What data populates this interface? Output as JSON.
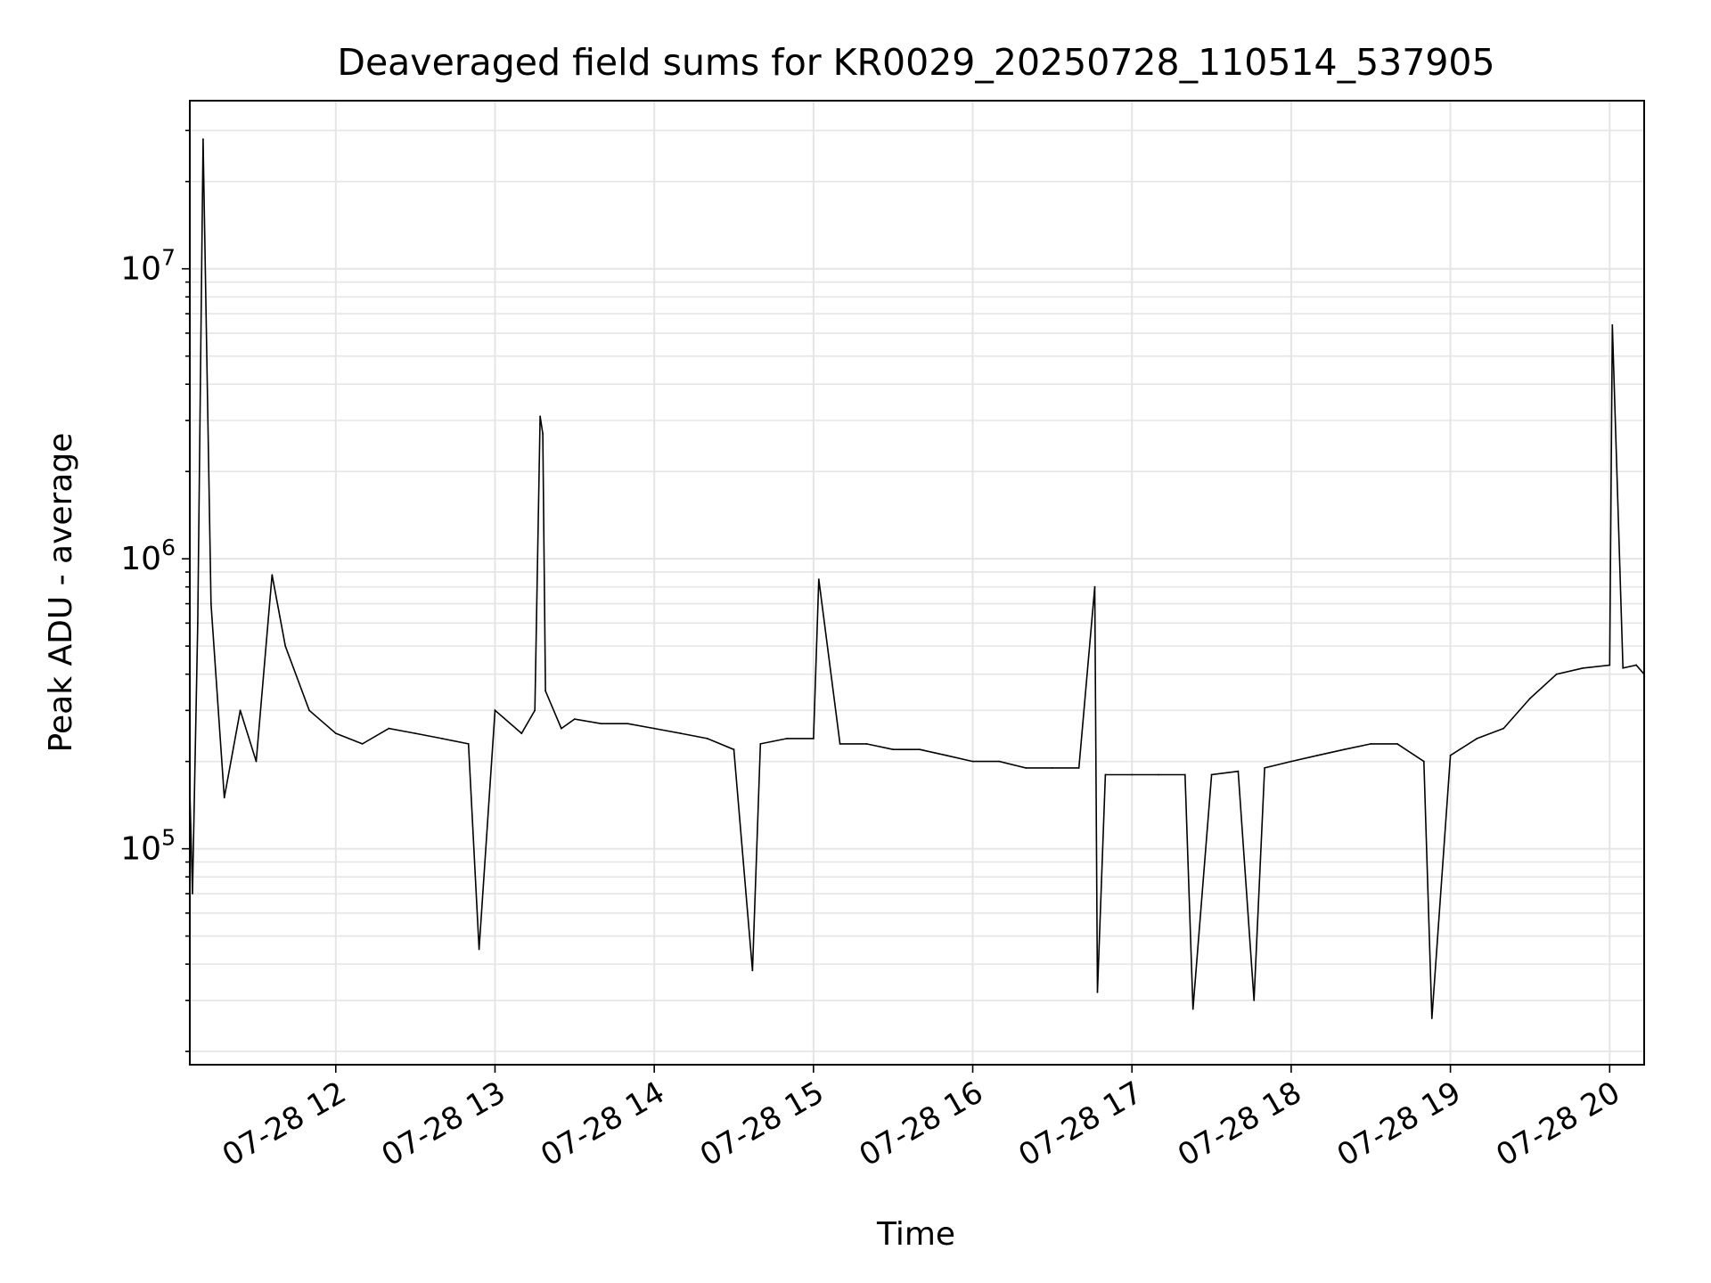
{
  "chart_data": {
    "type": "line",
    "title": "Deaveraged field sums for KR0029_20250728_110514_537905",
    "xlabel": "Time",
    "ylabel": "Peak ADU - average",
    "xlim": [
      "2025-07-28 11:05",
      "2025-07-28 20:13"
    ],
    "ylim": [
      18000,
      38000000
    ],
    "yscale": "log",
    "grid": true,
    "line_color": "#000000",
    "grid_color": "#e5e5e5",
    "x_ticks": [
      {
        "value": "2025-07-28 12:00",
        "label": "07-28 12"
      },
      {
        "value": "2025-07-28 13:00",
        "label": "07-28 13"
      },
      {
        "value": "2025-07-28 14:00",
        "label": "07-28 14"
      },
      {
        "value": "2025-07-28 15:00",
        "label": "07-28 15"
      },
      {
        "value": "2025-07-28 16:00",
        "label": "07-28 16"
      },
      {
        "value": "2025-07-28 17:00",
        "label": "07-28 17"
      },
      {
        "value": "2025-07-28 18:00",
        "label": "07-28 18"
      },
      {
        "value": "2025-07-28 19:00",
        "label": "07-28 19"
      },
      {
        "value": "2025-07-28 20:00",
        "label": "07-28 20"
      }
    ],
    "y_ticks": [
      {
        "value": 100000,
        "base": "10",
        "exp": "5"
      },
      {
        "value": 1000000,
        "base": "10",
        "exp": "6"
      },
      {
        "value": 10000000,
        "base": "10",
        "exp": "7"
      }
    ],
    "series": [
      {
        "x": [
          "2025-07-28 11:05",
          "2025-07-28 11:06",
          "2025-07-28 11:08",
          "2025-07-28 11:10",
          "2025-07-28 11:13",
          "2025-07-28 11:18",
          "2025-07-28 11:24",
          "2025-07-28 11:30",
          "2025-07-28 11:36",
          "2025-07-28 11:41",
          "2025-07-28 11:50",
          "2025-07-28 12:00",
          "2025-07-28 12:10",
          "2025-07-28 12:20",
          "2025-07-28 12:30",
          "2025-07-28 12:40",
          "2025-07-28 12:50",
          "2025-07-28 12:54",
          "2025-07-28 13:00",
          "2025-07-28 13:10",
          "2025-07-28 13:15",
          "2025-07-28 13:17",
          "2025-07-28 13:18",
          "2025-07-28 13:19",
          "2025-07-28 13:25",
          "2025-07-28 13:30",
          "2025-07-28 13:40",
          "2025-07-28 13:50",
          "2025-07-28 14:00",
          "2025-07-28 14:10",
          "2025-07-28 14:20",
          "2025-07-28 14:30",
          "2025-07-28 14:37",
          "2025-07-28 14:40",
          "2025-07-28 14:50",
          "2025-07-28 15:00",
          "2025-07-28 15:02",
          "2025-07-28 15:10",
          "2025-07-28 15:20",
          "2025-07-28 15:30",
          "2025-07-28 15:40",
          "2025-07-28 15:50",
          "2025-07-28 16:00",
          "2025-07-28 16:10",
          "2025-07-28 16:20",
          "2025-07-28 16:30",
          "2025-07-28 16:40",
          "2025-07-28 16:46",
          "2025-07-28 16:47",
          "2025-07-28 16:50",
          "2025-07-28 17:00",
          "2025-07-28 17:10",
          "2025-07-28 17:20",
          "2025-07-28 17:23",
          "2025-07-28 17:30",
          "2025-07-28 17:40",
          "2025-07-28 17:46",
          "2025-07-28 17:50",
          "2025-07-28 18:00",
          "2025-07-28 18:10",
          "2025-07-28 18:20",
          "2025-07-28 18:30",
          "2025-07-28 18:40",
          "2025-07-28 18:50",
          "2025-07-28 18:53",
          "2025-07-28 19:00",
          "2025-07-28 19:10",
          "2025-07-28 19:20",
          "2025-07-28 19:30",
          "2025-07-28 19:40",
          "2025-07-28 19:50",
          "2025-07-28 20:00",
          "2025-07-28 20:01",
          "2025-07-28 20:05",
          "2025-07-28 20:10",
          "2025-07-28 20:13"
        ],
        "y": [
          160000,
          70000,
          600000,
          28000000,
          700000,
          150000,
          300000,
          200000,
          880000,
          500000,
          300000,
          250000,
          230000,
          260000,
          250000,
          240000,
          230000,
          45000,
          300000,
          250000,
          300000,
          3100000,
          2700000,
          350000,
          260000,
          280000,
          270000,
          270000,
          260000,
          250000,
          240000,
          220000,
          38000,
          230000,
          240000,
          240000,
          850000,
          230000,
          230000,
          220000,
          220000,
          210000,
          200000,
          200000,
          190000,
          190000,
          190000,
          800000,
          32000,
          180000,
          180000,
          180000,
          180000,
          28000,
          180000,
          185000,
          30000,
          190000,
          200000,
          210000,
          220000,
          230000,
          230000,
          200000,
          26000,
          210000,
          240000,
          260000,
          330000,
          400000,
          420000,
          430000,
          6400000,
          420000,
          430000,
          400000
        ]
      }
    ]
  }
}
